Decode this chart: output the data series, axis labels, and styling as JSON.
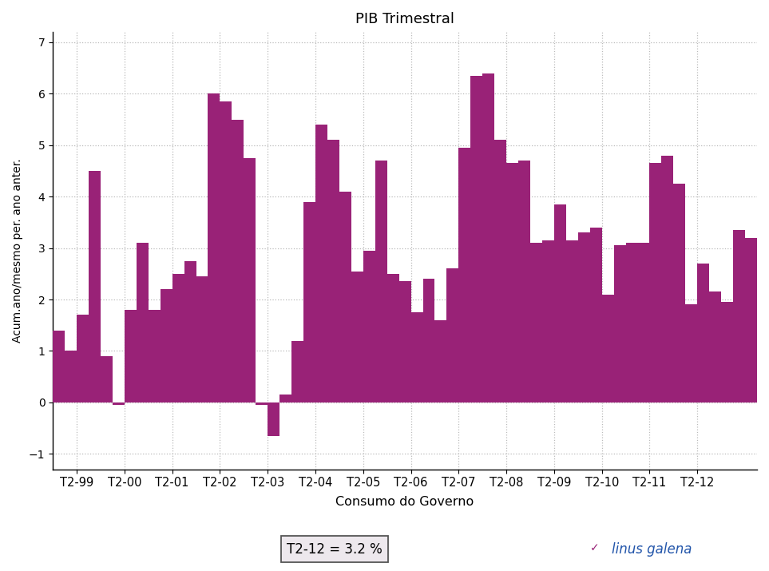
{
  "title": "PIB Trimestral",
  "xlabel": "Consumo do Governo",
  "ylabel": "Acum.ano/mesmo per. ano anter.",
  "bar_color": "#992277",
  "ylim": [
    -1.3,
    7.2
  ],
  "yticks": [
    -1,
    0,
    1,
    2,
    3,
    4,
    5,
    6,
    7
  ],
  "annotation_text": "T2-12 = 3.2 %",
  "logo_text": "linus galena",
  "xtick_labels": [
    "T2-99",
    "T2-00",
    "T2-01",
    "T2-02",
    "T2-03",
    "T2-04",
    "T2-05",
    "T2-06",
    "T2-07",
    "T2-08",
    "T2-09",
    "T2-10",
    "T2-11",
    "T2-12"
  ],
  "values": [
    1.4,
    1.0,
    1.7,
    4.5,
    0.9,
    -0.05,
    1.8,
    3.1,
    1.8,
    2.2,
    2.5,
    2.75,
    2.45,
    6.0,
    5.85,
    5.5,
    4.75,
    -0.05,
    -0.65,
    0.15,
    1.2,
    3.9,
    5.4,
    5.1,
    4.1,
    2.55,
    2.95,
    4.7,
    2.5,
    2.35,
    1.75,
    2.4,
    1.6,
    2.6,
    4.95,
    6.35,
    6.4,
    5.1,
    4.65,
    4.7,
    3.1,
    3.15,
    3.85,
    3.15,
    3.3,
    3.4,
    2.1,
    3.05,
    3.1,
    3.1,
    4.65,
    4.8,
    4.25,
    1.9,
    2.7,
    2.15,
    1.95,
    3.35,
    3.2
  ],
  "background_color": "#FFFFFF",
  "grid_color": "#BBBBBB",
  "annotation_bgcolor": "#EDE8ED",
  "annotation_edgecolor": "#555555",
  "logo_color": "#2255AA"
}
